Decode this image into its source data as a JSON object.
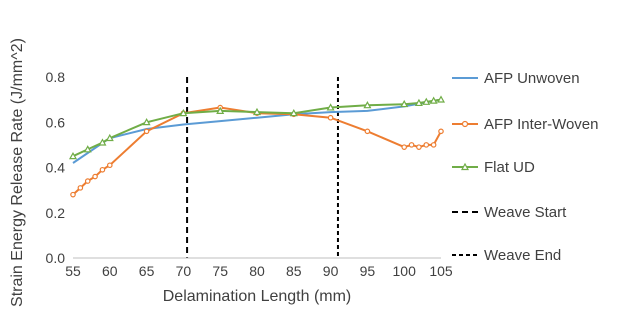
{
  "chart_data": {
    "type": "line",
    "title": "",
    "xlabel": "Delamination Length (mm)",
    "ylabel": "Strain Energy Release Rate (J/mm^2)",
    "xlim": [
      55,
      105
    ],
    "ylim": [
      0,
      0.8
    ],
    "xticks": [
      55,
      60,
      65,
      70,
      75,
      80,
      85,
      90,
      95,
      100,
      105
    ],
    "yticks": [
      0,
      0.2,
      0.4,
      0.6,
      0.8
    ],
    "ytick_labels": [
      "0.0",
      "0.2",
      "0.4",
      "0.6",
      "0.8"
    ],
    "grid": false,
    "legend_position": "right",
    "series": [
      {
        "name": "AFP Unwoven",
        "color": "#5b9bd5",
        "marker": "none",
        "dash": "solid",
        "x": [
          55,
          60,
          65,
          70,
          75,
          80,
          85,
          90,
          95,
          100,
          105
        ],
        "y": [
          0.42,
          0.53,
          0.57,
          0.59,
          0.605,
          0.62,
          0.635,
          0.645,
          0.65,
          0.67,
          0.7
        ]
      },
      {
        "name": "AFP Inter-Woven",
        "color": "#ed7d31",
        "marker": "circle",
        "dash": "solid",
        "x": [
          55,
          56,
          57,
          58,
          59,
          60,
          65,
          70,
          75,
          80,
          85,
          90,
          95,
          100,
          101,
          102,
          103,
          104,
          105
        ],
        "y": [
          0.28,
          0.31,
          0.34,
          0.36,
          0.39,
          0.41,
          0.56,
          0.64,
          0.665,
          0.64,
          0.635,
          0.62,
          0.56,
          0.49,
          0.5,
          0.49,
          0.5,
          0.5,
          0.56
        ]
      },
      {
        "name": "Flat UD",
        "color": "#70ad47",
        "marker": "triangle",
        "dash": "solid",
        "x": [
          55,
          57,
          59,
          60,
          65,
          70,
          75,
          80,
          85,
          90,
          95,
          100,
          102,
          103,
          104,
          105
        ],
        "y": [
          0.45,
          0.48,
          0.51,
          0.53,
          0.6,
          0.64,
          0.65,
          0.645,
          0.64,
          0.665,
          0.675,
          0.68,
          0.685,
          0.69,
          0.695,
          0.7
        ]
      }
    ],
    "reference_lines": [
      {
        "name": "Weave Start",
        "x": 70.5,
        "color": "#000000",
        "dash": "6,4"
      },
      {
        "name": "Weave End",
        "x": 91,
        "color": "#000000",
        "dash": "4,3"
      }
    ]
  }
}
